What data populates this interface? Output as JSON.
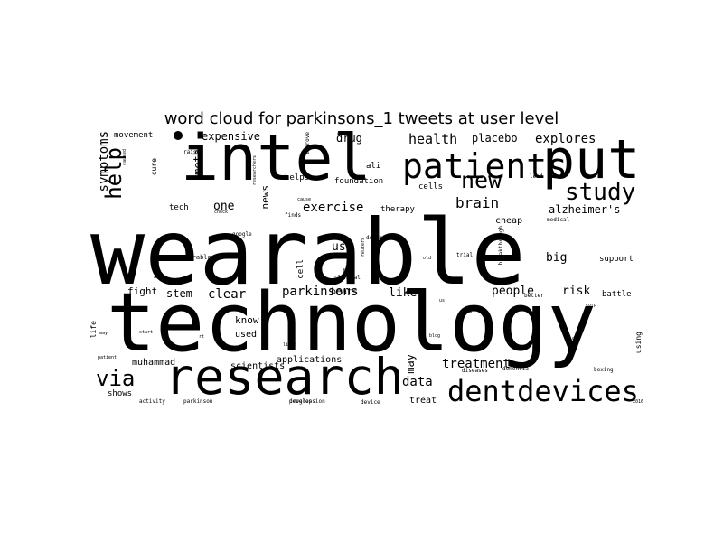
{
  "chart_data": {
    "type": "wordcloud",
    "title": "word cloud for parkinsons_1 tweets at user level",
    "words": [
      {
        "text": "wearable",
        "weight": 100
      },
      {
        "text": "technology",
        "weight": 95
      },
      {
        "text": "intel",
        "weight": 70
      },
      {
        "text": "put",
        "weight": 60
      },
      {
        "text": "research",
        "weight": 55
      },
      {
        "text": "patients",
        "weight": 38
      },
      {
        "text": "dentdevices",
        "weight": 32
      },
      {
        "text": "study",
        "weight": 26
      },
      {
        "text": "new",
        "weight": 25
      },
      {
        "text": "help",
        "weight": 24
      },
      {
        "text": "via",
        "weight": 24
      },
      {
        "text": "brain",
        "weight": 16
      },
      {
        "text": "health",
        "weight": 15
      },
      {
        "text": "explores",
        "weight": 14
      },
      {
        "text": "exercise",
        "weight": 14
      },
      {
        "text": "symptoms",
        "weight": 14
      },
      {
        "text": "parkinsons",
        "weight": 14
      },
      {
        "text": "treatment",
        "weight": 14
      },
      {
        "text": "data",
        "weight": 14
      },
      {
        "text": "clear",
        "weight": 14
      },
      {
        "text": "people",
        "weight": 13
      },
      {
        "text": "risk",
        "weight": 13
      },
      {
        "text": "big",
        "weight": 13
      },
      {
        "text": "like",
        "weight": 13
      },
      {
        "text": "one",
        "weight": 13
      },
      {
        "text": "use",
        "weight": 13
      },
      {
        "text": "may",
        "weight": 12
      },
      {
        "text": "meth",
        "weight": 12
      },
      {
        "text": "expensive",
        "weight": 12
      },
      {
        "text": "drug",
        "weight": 12
      },
      {
        "text": "placebo",
        "weight": 12
      },
      {
        "text": "alzheimer's",
        "weight": 12
      },
      {
        "text": "stem",
        "weight": 12
      },
      {
        "text": "fight",
        "weight": 11
      },
      {
        "text": "know",
        "weight": 11
      },
      {
        "text": "news",
        "weight": 11
      },
      {
        "text": "cheap",
        "weight": 10
      },
      {
        "text": "applications",
        "weight": 10
      },
      {
        "text": "scientists",
        "weight": 10
      },
      {
        "text": "muhammad",
        "weight": 10
      },
      {
        "text": "treat",
        "weight": 10
      },
      {
        "text": "used",
        "weight": 10
      },
      {
        "text": "beats",
        "weight": 10
      },
      {
        "text": "shows",
        "weight": 9
      },
      {
        "text": "support",
        "weight": 9
      },
      {
        "text": "battle",
        "weight": 9
      },
      {
        "text": "movement",
        "weight": 9
      },
      {
        "text": "cells",
        "weight": 9
      },
      {
        "text": "cell",
        "weight": 9
      },
      {
        "text": "helps",
        "weight": 9
      },
      {
        "text": "foundation",
        "weight": 9
      },
      {
        "text": "therapy",
        "weight": 9
      },
      {
        "text": "tech",
        "weight": 9
      },
      {
        "text": "ali",
        "weight": 9
      },
      {
        "text": "cure",
        "weight": 8
      },
      {
        "text": "life",
        "weight": 8
      },
      {
        "text": "using",
        "weight": 8
      },
      {
        "text": "wearables",
        "weight": 7
      },
      {
        "text": "raise",
        "weight": 6
      },
      {
        "text": "improve",
        "weight": 6
      },
      {
        "text": "aid",
        "weight": 6
      },
      {
        "text": "lead",
        "weight": 6
      },
      {
        "text": "google",
        "weight": 6
      },
      {
        "text": "finds",
        "weight": 6
      },
      {
        "text": "medical",
        "weight": 6
      },
      {
        "text": "dopamine",
        "weight": 6
      },
      {
        "text": "breakthrough",
        "weight": 6
      },
      {
        "text": "trial",
        "weight": 6
      },
      {
        "text": "clinical",
        "weight": 6
      },
      {
        "text": "better",
        "weight": 6
      },
      {
        "text": "progression",
        "weight": 6
      },
      {
        "text": "parkinson",
        "weight": 6
      },
      {
        "text": "activity",
        "weight": 6
      },
      {
        "text": "develop",
        "weight": 6
      },
      {
        "text": "device",
        "weight": 6
      },
      {
        "text": "diseases",
        "weight": 6
      },
      {
        "text": "dementia",
        "weight": 6
      },
      {
        "text": "boxing",
        "weight": 6
      },
      {
        "text": "patient",
        "weight": 5
      },
      {
        "text": "start",
        "weight": 5
      },
      {
        "text": "blog",
        "weight": 5
      },
      {
        "text": "light",
        "weight": 5
      },
      {
        "text": "fda",
        "weight": 5
      },
      {
        "text": "2016",
        "weight": 5
      },
      {
        "text": "caused",
        "weight": 5
      },
      {
        "text": "may",
        "weight": 5
      },
      {
        "text": "rt",
        "weight": 5
      },
      {
        "text": "us",
        "weight": 5
      },
      {
        "text": "find",
        "weight": 5
      },
      {
        "text": "ais",
        "weight": 5
      },
      {
        "text": "old",
        "weight": 5
      },
      {
        "text": "check",
        "weight": 5
      },
      {
        "text": "cause",
        "weight": 5
      },
      {
        "text": "researchers",
        "weight": 5
      },
      {
        "text": "corp",
        "weight": 5
      },
      {
        "text": "dr",
        "weight": 5
      },
      {
        "text": "reuters",
        "weight": 5
      }
    ]
  }
}
